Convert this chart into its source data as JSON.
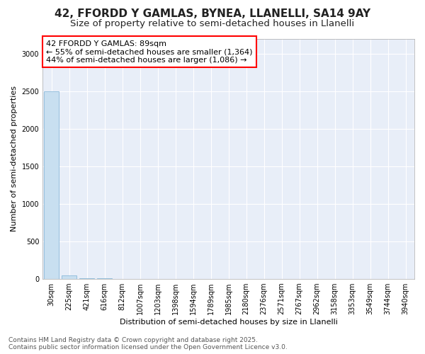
{
  "title_line1": "42, FFORDD Y GAMLAS, BYNEA, LLANELLI, SA14 9AY",
  "title_line2": "Size of property relative to semi-detached houses in Llanelli",
  "xlabel": "Distribution of semi-detached houses by size in Llanelli",
  "ylabel": "Number of semi-detached properties",
  "categories": [
    "30sqm",
    "225sqm",
    "421sqm",
    "616sqm",
    "812sqm",
    "1007sqm",
    "1203sqm",
    "1398sqm",
    "1594sqm",
    "1789sqm",
    "1985sqm",
    "2180sqm",
    "2376sqm",
    "2571sqm",
    "2767sqm",
    "2962sqm",
    "3158sqm",
    "3353sqm",
    "3549sqm",
    "3744sqm",
    "3940sqm"
  ],
  "values": [
    2500,
    50,
    10,
    5,
    3,
    2,
    2,
    1,
    1,
    1,
    1,
    1,
    1,
    1,
    1,
    1,
    1,
    1,
    1,
    1,
    1
  ],
  "bar_color": "#c8dff0",
  "bar_edge_color": "#7ab0d4",
  "annotation_text": "42 FFORDD Y GAMLAS: 89sqm\n← 55% of semi-detached houses are smaller (1,364)\n44% of semi-detached houses are larger (1,086) →",
  "annotation_box_facecolor": "white",
  "annotation_box_edgecolor": "red",
  "ylim": [
    0,
    3200
  ],
  "yticks": [
    0,
    500,
    1000,
    1500,
    2000,
    2500,
    3000
  ],
  "footer_line1": "Contains HM Land Registry data © Crown copyright and database right 2025.",
  "footer_line2": "Contains public sector information licensed under the Open Government Licence v3.0.",
  "bg_color": "#ffffff",
  "plot_bg_color": "#e8eef8",
  "grid_color": "#ffffff",
  "title_fontsize": 11,
  "subtitle_fontsize": 9.5,
  "axis_label_fontsize": 8,
  "tick_fontsize": 7,
  "annotation_fontsize": 8,
  "footer_fontsize": 6.5
}
